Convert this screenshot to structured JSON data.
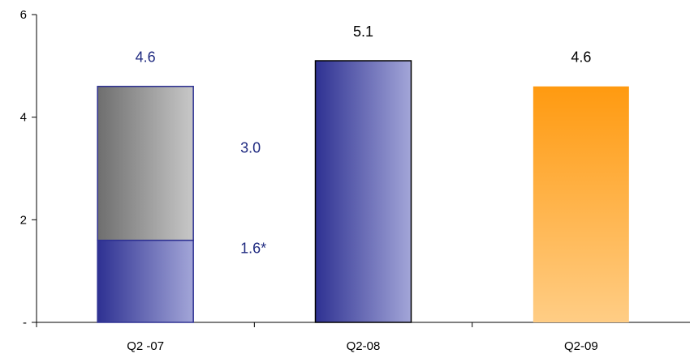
{
  "chart_data": {
    "type": "bar",
    "categories": [
      "Q2 -07",
      "Q2-08",
      "Q2-09"
    ],
    "ylim": [
      0,
      6
    ],
    "y_ticks": [
      {
        "value": 0,
        "label": "-"
      },
      {
        "value": 2,
        "label": "2"
      },
      {
        "value": 4,
        "label": "4"
      },
      {
        "value": 6,
        "label": "6"
      }
    ],
    "grid": false,
    "legend": "none",
    "bars": [
      {
        "category": "Q2 -07",
        "total": 4.6,
        "total_label": "4.6",
        "segments": [
          {
            "value": 1.6,
            "label": "1.6*",
            "style": "blue"
          },
          {
            "value": 3.0,
            "label": "3.0",
            "style": "gray"
          }
        ]
      },
      {
        "category": "Q2-08",
        "total": 5.1,
        "total_label": "5.1",
        "segments": [
          {
            "value": 5.1,
            "style": "blue"
          }
        ]
      },
      {
        "category": "Q2-09",
        "total": 4.6,
        "total_label": "4.6",
        "segments": [
          {
            "value": 4.6,
            "style": "orange"
          }
        ]
      }
    ],
    "colors": {
      "blue_dark": "#2E3192",
      "blue_light": "#A3A6D8",
      "gray_dark": "#6E6E6E",
      "gray_light": "#C8C8C8",
      "orange_top": "#FF9A10",
      "orange_bottom": "#FFCD85",
      "label_navy": "#1F2A80",
      "label_black": "#000000"
    }
  }
}
